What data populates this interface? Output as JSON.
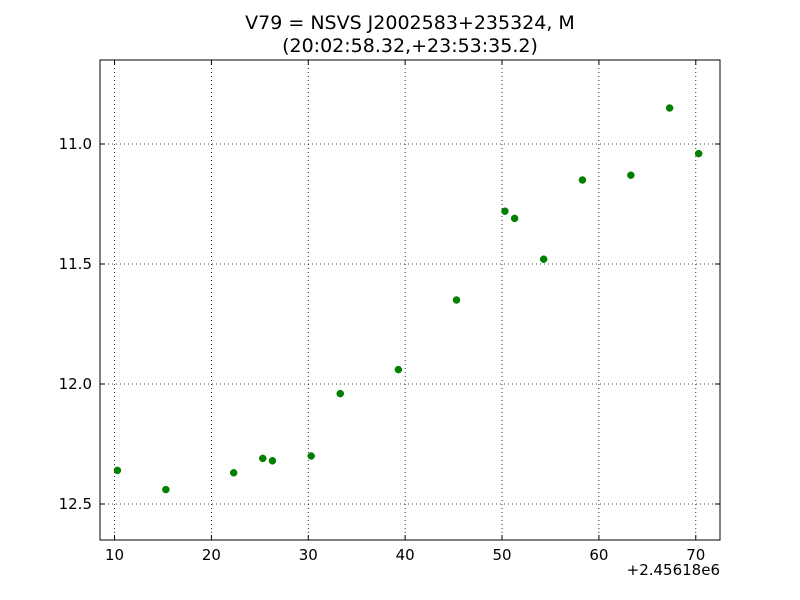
{
  "chart_data": {
    "type": "scatter",
    "title_line1": "V79 = NSVS J2002583+235324, M",
    "title_line2": "(20:02:58.32,+23:53:35.2)",
    "xlabel": "",
    "ylabel": "",
    "x_offset_label": "+2.45618e6",
    "xlim": [
      8.5,
      72.5
    ],
    "ylim": [
      12.65,
      10.65
    ],
    "y_inverted": true,
    "grid": true,
    "marker_color": "#008000",
    "x_ticks": [
      10,
      20,
      30,
      40,
      50,
      60,
      70
    ],
    "x_tick_labels": [
      "10",
      "20",
      "30",
      "40",
      "50",
      "60",
      "70"
    ],
    "y_ticks": [
      11.0,
      11.5,
      12.0,
      12.5
    ],
    "y_tick_labels": [
      "11.0",
      "11.5",
      "12.0",
      "12.5"
    ],
    "points": [
      {
        "x": 10.3,
        "y": 12.36
      },
      {
        "x": 15.3,
        "y": 12.44
      },
      {
        "x": 22.3,
        "y": 12.37
      },
      {
        "x": 25.3,
        "y": 12.31
      },
      {
        "x": 26.3,
        "y": 12.32
      },
      {
        "x": 30.3,
        "y": 12.3
      },
      {
        "x": 33.3,
        "y": 12.04
      },
      {
        "x": 39.3,
        "y": 11.94
      },
      {
        "x": 45.3,
        "y": 11.65
      },
      {
        "x": 50.3,
        "y": 11.28
      },
      {
        "x": 51.3,
        "y": 11.31
      },
      {
        "x": 54.3,
        "y": 11.48
      },
      {
        "x": 58.3,
        "y": 11.15
      },
      {
        "x": 63.3,
        "y": 11.13
      },
      {
        "x": 67.3,
        "y": 10.85
      },
      {
        "x": 70.3,
        "y": 11.04
      }
    ]
  }
}
